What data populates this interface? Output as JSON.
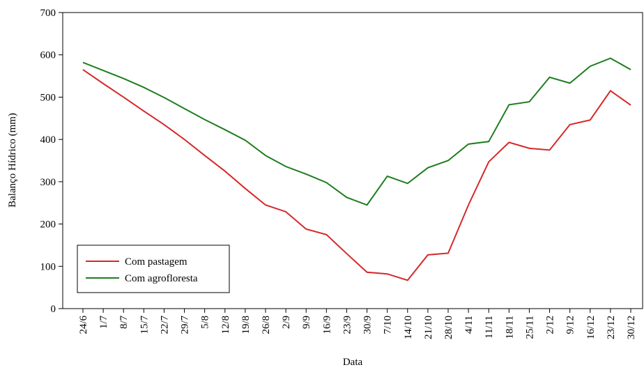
{
  "chart_data": {
    "type": "line",
    "xlabel": "Data",
    "ylabel": "Balanço Hídrico (mm)",
    "categories": [
      "24/6",
      "1/7",
      "8/7",
      "15/7",
      "22/7",
      "29/7",
      "5/8",
      "12/8",
      "19/8",
      "26/8",
      "2/9",
      "9/9",
      "16/9",
      "23/9",
      "30/9",
      "7/10",
      "14/10",
      "21/10",
      "28/10",
      "4/11",
      "11/11",
      "18/11",
      "25/11",
      "2/12",
      "9/12",
      "16/12",
      "23/12",
      "30/12"
    ],
    "series": [
      {
        "name": "Com pastagem",
        "color": "#d62728",
        "values": [
          565,
          532,
          500,
          467,
          435,
          400,
          362,
          325,
          284,
          245,
          229,
          188,
          175,
          130,
          86,
          82,
          67,
          127,
          131,
          245,
          347,
          393,
          379,
          375,
          435,
          446,
          515,
          481
        ]
      },
      {
        "name": "Com agrofloresta",
        "color": "#1e7d1e",
        "values": [
          582,
          563,
          544,
          523,
          499,
          473,
          447,
          423,
          398,
          362,
          336,
          318,
          298,
          263,
          245,
          313,
          296,
          333,
          350,
          389,
          395,
          482,
          489,
          547,
          533,
          573,
          592,
          565
        ]
      }
    ],
    "ylim": [
      0,
      700
    ],
    "yticks": [
      0,
      100,
      200,
      300,
      400,
      500,
      600,
      700
    ],
    "legend": "lower left"
  }
}
